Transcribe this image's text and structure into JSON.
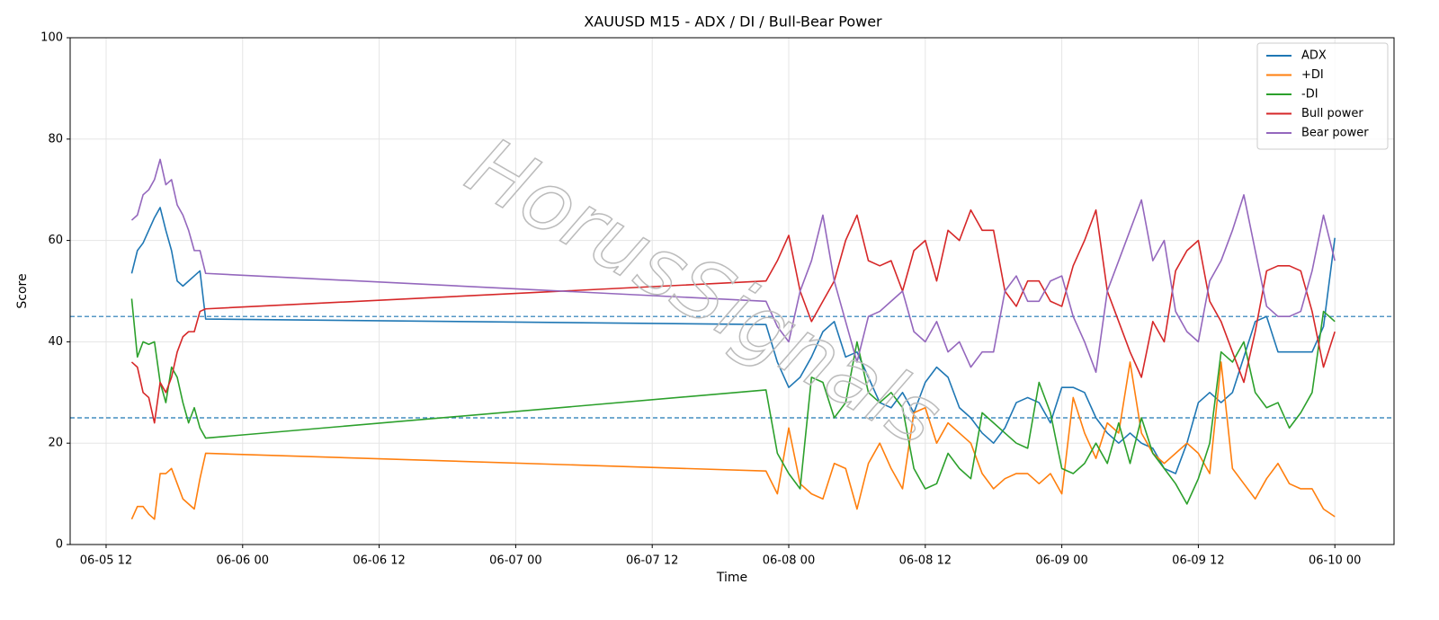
{
  "chart_data": {
    "type": "line",
    "title": "XAUUSD M15 - ADX / DI / Bull-Bear Power",
    "x_label": "Time",
    "y_label": "Score",
    "watermark": "HorusSignals",
    "x": [
      14.25,
      14.75,
      15.25,
      15.75,
      16.25,
      16.75,
      17.25,
      17.75,
      18.25,
      18.75,
      19.25,
      19.75,
      20.25,
      20.75,
      70,
      71,
      72,
      73,
      74,
      75,
      76,
      77,
      78,
      79,
      80,
      81,
      82,
      83,
      84,
      85,
      86,
      87,
      88,
      89,
      90,
      91,
      92,
      93,
      94,
      95,
      96,
      97,
      98,
      99,
      100,
      101,
      102,
      103,
      104,
      105,
      106,
      107,
      108,
      109,
      110,
      111,
      112,
      113,
      114,
      115,
      116,
      117,
      118,
      119,
      120
    ],
    "xlim": [
      8.84,
      125.2
    ],
    "xticks": [
      {
        "value": 12,
        "label": "06-05 12"
      },
      {
        "value": 24,
        "label": "06-06 00"
      },
      {
        "value": 36,
        "label": "06-06 12"
      },
      {
        "value": 48,
        "label": "06-07 00"
      },
      {
        "value": 60,
        "label": "06-07 12"
      },
      {
        "value": 72,
        "label": "06-08 00"
      },
      {
        "value": 84,
        "label": "06-08 12"
      },
      {
        "value": 96,
        "label": "06-09 00"
      },
      {
        "value": 108,
        "label": "06-09 12"
      },
      {
        "value": 120,
        "label": "06-10 00"
      }
    ],
    "ylim": [
      0,
      100
    ],
    "yticks": [
      0,
      20,
      40,
      60,
      80,
      100
    ],
    "grid": true,
    "legend": "upper right",
    "hlines": [
      {
        "value": 45,
        "color": "#1f77b4"
      },
      {
        "value": 25,
        "color": "#1f77b4"
      }
    ],
    "series": [
      {
        "name": "ADX",
        "color": "#1f77b4",
        "values": [
          53.5,
          58,
          59.5,
          62,
          64.5,
          66.5,
          62,
          58,
          52,
          51,
          52,
          53,
          54,
          44.5,
          43.4,
          36,
          31,
          33,
          37,
          42,
          44,
          37,
          38,
          33,
          28,
          27,
          30,
          26,
          32,
          35,
          33,
          27,
          25,
          22,
          20,
          23,
          28,
          29,
          28,
          24,
          31,
          31,
          30,
          25,
          22,
          20,
          22,
          20,
          19,
          15,
          14,
          20,
          28,
          30,
          28,
          30,
          37,
          44,
          45,
          38,
          38,
          38,
          38,
          43,
          60.5
        ]
      },
      {
        "name": "+DI",
        "color": "#ff7f0e",
        "values": [
          5,
          7.5,
          7.5,
          6,
          5,
          14,
          14,
          15,
          12,
          9,
          8,
          7,
          13,
          18,
          14.5,
          10,
          23,
          12,
          10,
          9,
          16,
          15,
          7,
          16,
          20,
          15,
          11,
          26,
          27,
          20,
          24,
          22,
          20,
          14,
          11,
          13,
          14,
          14,
          12,
          14,
          10,
          29,
          22,
          17,
          24,
          22,
          36,
          22,
          18,
          16,
          18,
          20,
          18,
          14,
          36,
          15,
          12,
          9,
          13,
          16,
          12,
          11,
          11,
          7,
          5.5
        ]
      },
      {
        "name": "-DI",
        "color": "#2ca02c",
        "values": [
          48.5,
          37,
          40,
          39.5,
          40,
          32,
          28,
          35,
          33,
          28,
          24,
          27,
          23,
          21,
          30.5,
          18,
          14,
          11,
          33,
          32,
          25,
          28,
          40,
          30,
          28,
          30,
          27,
          15,
          11,
          12,
          18,
          15,
          13,
          26,
          24,
          22,
          20,
          19,
          32,
          26,
          15,
          14,
          16,
          20,
          16,
          24,
          16,
          25,
          18,
          15,
          12,
          8,
          13,
          20,
          38,
          36,
          40,
          30,
          27,
          28,
          23,
          26,
          30,
          46,
          44
        ]
      },
      {
        "name": "Bull power",
        "color": "#d62728",
        "values": [
          36,
          35,
          30,
          29,
          24,
          32,
          30,
          33,
          38,
          41,
          42,
          42,
          46,
          46.5,
          52,
          56,
          61,
          50,
          44,
          48,
          52,
          60,
          65,
          56,
          55,
          56,
          50,
          58,
          60,
          52,
          62,
          60,
          66,
          62,
          62,
          50,
          47,
          52,
          52,
          48,
          47,
          55,
          60,
          66,
          50,
          44,
          38,
          33,
          44,
          40,
          54,
          58,
          60,
          48,
          44,
          38,
          32,
          42,
          54,
          55,
          55,
          54,
          46,
          35,
          42
        ]
      },
      {
        "name": "Bear power",
        "color": "#9467bd",
        "values": [
          64,
          65,
          69,
          70,
          72,
          76,
          71,
          72,
          67,
          65,
          62,
          58,
          58,
          53.5,
          48,
          43,
          40,
          50,
          56,
          65,
          52,
          44,
          36,
          45,
          46,
          48,
          50,
          42,
          40,
          44,
          38,
          40,
          35,
          38,
          38,
          50,
          53,
          48,
          48,
          52,
          53,
          45,
          40,
          34,
          50,
          56,
          62,
          68,
          56,
          60,
          46,
          42,
          40,
          52,
          56,
          62,
          69,
          58,
          47,
          45,
          45,
          46,
          54,
          65,
          56
        ]
      }
    ]
  }
}
